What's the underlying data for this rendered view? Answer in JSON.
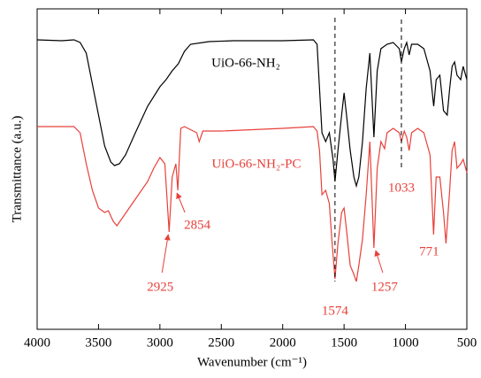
{
  "chart_data": {
    "type": "line",
    "xlabel": "Wavenumber (cm⁻¹)",
    "ylabel": "Transmittance (a.u.)",
    "xlim": [
      4000,
      500
    ],
    "xticks": [
      4000,
      3500,
      3000,
      2500,
      2000,
      1500,
      1000,
      500
    ],
    "ylim": [
      0,
      362
    ],
    "series": [
      {
        "name": "UiO-66-NH₂",
        "color": "#000000",
        "x": [
          4000,
          3800,
          3700,
          3650,
          3600,
          3550,
          3500,
          3450,
          3400,
          3370,
          3330,
          3280,
          3200,
          3100,
          3000,
          2950,
          2900,
          2850,
          2800,
          2750,
          2600,
          2400,
          2000,
          1750,
          1720,
          1700,
          1680,
          1650,
          1620,
          1590,
          1574,
          1550,
          1520,
          1500,
          1480,
          1450,
          1420,
          1400,
          1380,
          1350,
          1320,
          1290,
          1257,
          1230,
          1200,
          1150,
          1100,
          1050,
          1033,
          1010,
          990,
          970,
          950,
          900,
          850,
          800,
          770,
          750,
          720,
          690,
          660,
          640,
          620,
          600,
          580,
          550,
          530,
          500
        ],
        "values": [
          327,
          326,
          327,
          324,
          312,
          277,
          242,
          207,
          189,
          185,
          187,
          197,
          222,
          252,
          274,
          282,
          292,
          300,
          314,
          322,
          325,
          326,
          326,
          327,
          322,
          272,
          222,
          212,
          222,
          192,
          167,
          202,
          242,
          267,
          242,
          202,
          172,
          162,
          172,
          212,
          272,
          312,
          217,
          292,
          317,
          322,
          324,
          317,
          302,
          317,
          324,
          310,
          322,
          322,
          317,
          292,
          252,
          282,
          287,
          247,
          242,
          272,
          297,
          302,
          287,
          282,
          297,
          282
        ]
      },
      {
        "name": "UiO-66-NH₂-PC",
        "color": "#e8403a",
        "x": [
          4000,
          3700,
          3650,
          3600,
          3550,
          3500,
          3450,
          3420,
          3380,
          3350,
          3300,
          3200,
          3100,
          3050,
          3000,
          2960,
          2925,
          2900,
          2870,
          2854,
          2830,
          2800,
          2700,
          2680,
          2650,
          2500,
          2000,
          1750,
          1720,
          1700,
          1680,
          1650,
          1620,
          1600,
          1574,
          1550,
          1520,
          1500,
          1480,
          1450,
          1420,
          1400,
          1380,
          1350,
          1320,
          1290,
          1257,
          1230,
          1200,
          1170,
          1150,
          1100,
          1050,
          1033,
          1010,
          990,
          970,
          950,
          900,
          850,
          800,
          771,
          750,
          720,
          690,
          670,
          640,
          620,
          600,
          580,
          550,
          530,
          500
        ],
        "values": [
          229,
          229,
          222,
          187,
          157,
          137,
          132,
          134,
          122,
          117,
          127,
          147,
          167,
          182,
          194,
          187,
          110,
          172,
          187,
          157,
          227,
          229,
          222,
          212,
          224,
          224,
          227,
          229,
          224,
          202,
          152,
          157,
          142,
          102,
          57,
          97,
          132,
          137,
          112,
          72,
          62,
          54,
          72,
          102,
          152,
          212,
          92,
          182,
          212,
          204,
          222,
          227,
          222,
          212,
          224,
          217,
          202,
          222,
          227,
          222,
          197,
          107,
          172,
          172,
          132,
          97,
          157,
          202,
          212,
          182,
          187,
          192,
          177
        ]
      }
    ],
    "annotations": [
      {
        "text": "2925",
        "x": 2925
      },
      {
        "text": "2854",
        "x": 2854
      },
      {
        "text": "1574",
        "x": 1574
      },
      {
        "text": "1257",
        "x": 1257
      },
      {
        "text": "1033",
        "x": 1033
      },
      {
        "text": "771",
        "x": 771
      }
    ]
  }
}
